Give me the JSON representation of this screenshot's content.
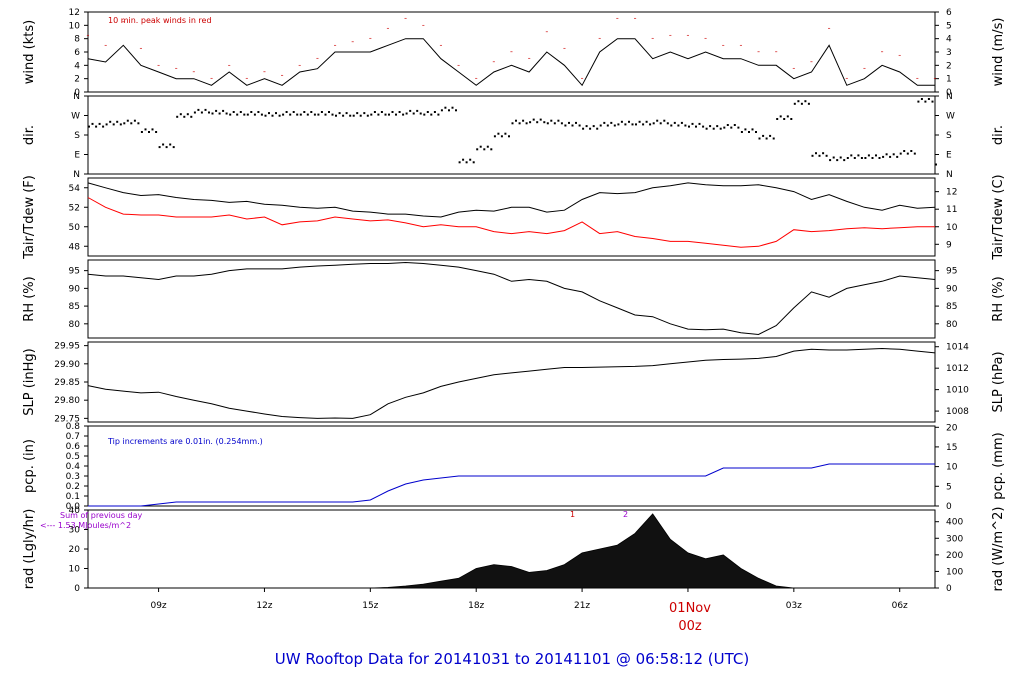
{
  "page_title": "UW Rooftop Data for 20141031  to  20141101 @ 06:58:12  (UTC)",
  "x_axis": {
    "tick_labels": [
      "09z",
      "12z",
      "15z",
      "18z",
      "21z",
      "00z",
      "03z",
      "06z"
    ],
    "date_label": "01Nov",
    "date_sublabel": "00z"
  },
  "panels": {
    "wind": {
      "left_label": "wind (kts)",
      "right_label": "wind (m/s)",
      "left_ticks": [
        "0",
        "2",
        "4",
        "6",
        "8",
        "10",
        "12"
      ],
      "right_ticks": [
        "0",
        "1",
        "2",
        "3",
        "4",
        "5",
        "6"
      ],
      "note": "10 min. peak winds in red"
    },
    "dir": {
      "left_label": "dir.",
      "right_label": "dir.",
      "left_ticks": [
        "N",
        "E",
        "S",
        "W",
        "N"
      ],
      "right_ticks": [
        "N",
        "E",
        "S",
        "W",
        "N"
      ]
    },
    "temp": {
      "left_label": "Tair/Tdew (F)",
      "right_label": "Tair/Tdew (C)",
      "left_ticks": [
        "48",
        "50",
        "52",
        "54"
      ],
      "right_ticks": [
        "9",
        "10",
        "11",
        "12"
      ]
    },
    "rh": {
      "left_label": "RH (%)",
      "right_label": "RH (%)",
      "left_ticks": [
        "80",
        "85",
        "90",
        "95"
      ],
      "right_ticks": [
        "80",
        "85",
        "90",
        "95"
      ]
    },
    "slp": {
      "left_label": "SLP (inHg)",
      "right_label": "SLP (hPa)",
      "left_ticks": [
        "29.75",
        "29.80",
        "29.85",
        "29.90",
        "29.95"
      ],
      "right_ticks": [
        "1008",
        "1010",
        "1012",
        "1014"
      ]
    },
    "pcp": {
      "left_label": "pcp. (in)",
      "right_label": "pcp. (mm)",
      "left_ticks": [
        "0.0",
        "0.1",
        "0.2",
        "0.3",
        "0.4",
        "0.5",
        "0.6",
        "0.7",
        "0.8"
      ],
      "right_ticks": [
        "0",
        "5",
        "10",
        "15",
        "20"
      ],
      "note": "Tip increments are 0.01in. (0.254mm.)"
    },
    "rad": {
      "left_label": "rad (Lgly/hr)",
      "right_label": "rad (W/m^2)",
      "left_ticks": [
        "0",
        "10",
        "20",
        "30",
        "40"
      ],
      "right_ticks": [
        "0",
        "100",
        "200",
        "300",
        "400"
      ],
      "note1": "Sum of previous day",
      "note2": "<--- 1.53 MJoules/m^2",
      "marker1": "1",
      "marker2": "2"
    }
  },
  "colors": {
    "title": "#0000cc",
    "peak": "#cc0000",
    "dewpoint": "#ff0000",
    "precip": "#0000cc",
    "rad_note": "#9900cc",
    "line": "#000000"
  },
  "chart_data": [
    {
      "type": "line",
      "name": "wind",
      "x_hours": [
        7,
        7.5,
        8,
        8.5,
        9,
        9.5,
        10,
        10.5,
        11,
        11.5,
        12,
        12.5,
        13,
        13.5,
        14,
        14.5,
        15,
        15.5,
        16,
        16.5,
        17,
        17.5,
        18,
        18.5,
        19,
        19.5,
        20,
        20.5,
        21,
        21.5,
        22,
        22.5,
        23,
        23.5,
        24,
        24.5,
        25,
        25.5,
        26,
        26.5,
        27,
        27.5,
        28,
        28.5,
        29,
        29.5,
        30,
        30.5,
        31
      ],
      "series": [
        {
          "name": "wind",
          "values": [
            5,
            4.5,
            7,
            4,
            3,
            2,
            2,
            1,
            3,
            1,
            2,
            1,
            3,
            3.5,
            6,
            6,
            6,
            7,
            8,
            8,
            5,
            3,
            1,
            3,
            4,
            3,
            6,
            4,
            1,
            6,
            8,
            8,
            5,
            6,
            5,
            6,
            5,
            5,
            4,
            4,
            2,
            3,
            7,
            1,
            2,
            4,
            3,
            1,
            1
          ]
        },
        {
          "name": "10 min. peak winds",
          "values": [
            8.5,
            7,
            10.5,
            6.5,
            4,
            3.5,
            3,
            2,
            4,
            2,
            3,
            2.5,
            4,
            5,
            7,
            7.5,
            8,
            9.5,
            11,
            10,
            7,
            4,
            2,
            4.5,
            6,
            5,
            9,
            6.5,
            2,
            8,
            11,
            11,
            8,
            8.5,
            8.5,
            8,
            7,
            7,
            6,
            6,
            3.5,
            4.5,
            9.5,
            2,
            3.5,
            6,
            5.5,
            2,
            2
          ]
        }
      ],
      "ylim": [
        0,
        12
      ],
      "y2lim": [
        0,
        6
      ]
    },
    {
      "type": "scatter",
      "name": "dir",
      "x_hours": [
        7,
        7.5,
        8,
        8.5,
        9,
        9.5,
        10,
        10.5,
        11,
        11.5,
        12,
        12.5,
        13,
        13.5,
        14,
        14.5,
        15,
        15.5,
        16,
        16.5,
        17,
        17.5,
        18,
        18.5,
        19,
        19.5,
        20,
        20.5,
        21,
        21.5,
        22,
        22.5,
        23,
        23.5,
        24,
        24.5,
        25,
        25.5,
        26,
        26.5,
        27,
        27.5,
        28,
        28.5,
        29,
        29.5,
        30,
        30.5,
        31
      ],
      "values": [
        225,
        235,
        240,
        200,
        130,
        270,
        290,
        285,
        280,
        280,
        275,
        280,
        280,
        280,
        275,
        275,
        280,
        280,
        285,
        280,
        300,
        60,
        120,
        180,
        240,
        245,
        240,
        230,
        215,
        230,
        235,
        235,
        240,
        230,
        225,
        215,
        220,
        200,
        170,
        260,
        330,
        90,
        70,
        80,
        80,
        85,
        100,
        340,
        50
      ],
      "ylim": [
        0,
        360
      ]
    },
    {
      "type": "line",
      "name": "temp",
      "x_hours": [
        7,
        7.5,
        8,
        8.5,
        9,
        9.5,
        10,
        10.5,
        11,
        11.5,
        12,
        12.5,
        13,
        13.5,
        14,
        14.5,
        15,
        15.5,
        16,
        16.5,
        17,
        17.5,
        18,
        18.5,
        19,
        19.5,
        20,
        20.5,
        21,
        21.5,
        22,
        22.5,
        23,
        23.5,
        24,
        24.5,
        25,
        25.5,
        26,
        26.5,
        27,
        27.5,
        28,
        28.5,
        29,
        29.5,
        30,
        30.5,
        31
      ],
      "series": [
        {
          "name": "Tair",
          "values": [
            54.5,
            54,
            53.5,
            53.2,
            53.3,
            53,
            52.8,
            52.7,
            52.5,
            52.6,
            52.3,
            52.2,
            52,
            51.9,
            52,
            51.6,
            51.5,
            51.3,
            51.3,
            51.1,
            51,
            51.5,
            51.7,
            51.6,
            52,
            52,
            51.5,
            51.7,
            52.8,
            53.5,
            53.4,
            53.5,
            54,
            54.2,
            54.5,
            54.3,
            54.2,
            54.2,
            54.3,
            54,
            53.6,
            52.8,
            53.3,
            52.6,
            52,
            51.7,
            52.2,
            51.9,
            52
          ]
        },
        {
          "name": "Tdew",
          "values": [
            53,
            52,
            51.3,
            51.2,
            51.2,
            51,
            51,
            51,
            51.2,
            50.8,
            51,
            50.2,
            50.5,
            50.6,
            51,
            50.8,
            50.6,
            50.7,
            50.4,
            50,
            50.2,
            50,
            50,
            49.5,
            49.3,
            49.5,
            49.3,
            49.6,
            50.5,
            49.3,
            49.5,
            49,
            48.8,
            48.5,
            48.5,
            48.3,
            48.1,
            47.9,
            48,
            48.5,
            49.7,
            49.5,
            49.6,
            49.8,
            49.9,
            49.8,
            49.9,
            50,
            50
          ]
        }
      ],
      "ylim": [
        47,
        55
      ],
      "y2lim": [
        8.3,
        12.8
      ]
    },
    {
      "type": "line",
      "name": "rh",
      "x_hours": [
        7,
        7.5,
        8,
        8.5,
        9,
        9.5,
        10,
        10.5,
        11,
        11.5,
        12,
        12.5,
        13,
        13.5,
        14,
        14.5,
        15,
        15.5,
        16,
        16.5,
        17,
        17.5,
        18,
        18.5,
        19,
        19.5,
        20,
        20.5,
        21,
        21.5,
        22,
        22.5,
        23,
        23.5,
        24,
        24.5,
        25,
        25.5,
        26,
        26.5,
        27,
        27.5,
        28,
        28.5,
        29,
        29.5,
        30,
        30.5,
        31
      ],
      "values": [
        94,
        93.5,
        93.5,
        93,
        92.5,
        93.5,
        93.5,
        94,
        95,
        95.5,
        95.5,
        95.5,
        96,
        96.3,
        96.5,
        96.8,
        97,
        97,
        97.3,
        97,
        96.5,
        96,
        95,
        94,
        92,
        92.5,
        92,
        90,
        89,
        86.5,
        84.5,
        82.5,
        82,
        80,
        78.5,
        78.3,
        78.5,
        77.5,
        77,
        79.5,
        84.5,
        89,
        87.5,
        90,
        91,
        92,
        93.5,
        93,
        92.5
      ],
      "ylim": [
        76,
        98
      ]
    },
    {
      "type": "line",
      "name": "slp",
      "x_hours": [
        7,
        7.5,
        8,
        8.5,
        9,
        9.5,
        10,
        10.5,
        11,
        11.5,
        12,
        12.5,
        13,
        13.5,
        14,
        14.5,
        15,
        15.5,
        16,
        16.5,
        17,
        17.5,
        18,
        18.5,
        19,
        19.5,
        20,
        20.5,
        21,
        21.5,
        22,
        22.5,
        23,
        23.5,
        24,
        24.5,
        25,
        25.5,
        26,
        26.5,
        27,
        27.5,
        28,
        28.5,
        29,
        29.5,
        30,
        30.5,
        31
      ],
      "values": [
        29.84,
        29.83,
        29.825,
        29.82,
        29.822,
        29.81,
        29.8,
        29.79,
        29.778,
        29.77,
        29.762,
        29.755,
        29.752,
        29.75,
        29.751,
        29.75,
        29.76,
        29.79,
        29.808,
        29.82,
        29.838,
        29.85,
        29.86,
        29.87,
        29.875,
        29.88,
        29.885,
        29.89,
        29.89,
        29.891,
        29.892,
        29.893,
        29.895,
        29.9,
        29.905,
        29.91,
        29.912,
        29.913,
        29.915,
        29.92,
        29.935,
        29.94,
        29.938,
        29.938,
        29.94,
        29.942,
        29.94,
        29.935,
        29.93
      ],
      "ylim": [
        29.74,
        29.96
      ],
      "y2lim": [
        1007.5,
        1014.6
      ]
    },
    {
      "type": "line",
      "name": "pcp",
      "x_hours": [
        7,
        7.5,
        8,
        8.5,
        9,
        9.5,
        10,
        10.5,
        11,
        11.5,
        12,
        12.5,
        13,
        13.5,
        14,
        14.5,
        15,
        15.5,
        16,
        16.5,
        17,
        17.5,
        18,
        18.5,
        19,
        19.5,
        20,
        20.5,
        21,
        21.5,
        22,
        22.5,
        23,
        23.5,
        24,
        24.5,
        25,
        25.5,
        26,
        26.5,
        27,
        27.5,
        28,
        28.5,
        29,
        29.5,
        30,
        30.5,
        31
      ],
      "values": [
        0,
        0,
        0,
        0,
        0.02,
        0.04,
        0.04,
        0.04,
        0.04,
        0.04,
        0.04,
        0.04,
        0.04,
        0.04,
        0.04,
        0.04,
        0.06,
        0.15,
        0.22,
        0.26,
        0.28,
        0.3,
        0.3,
        0.3,
        0.3,
        0.3,
        0.3,
        0.3,
        0.3,
        0.3,
        0.3,
        0.3,
        0.3,
        0.3,
        0.3,
        0.3,
        0.38,
        0.38,
        0.38,
        0.38,
        0.38,
        0.38,
        0.42,
        0.42,
        0.42,
        0.42,
        0.42,
        0.42,
        0.42
      ],
      "ylim": [
        0,
        0.8
      ],
      "y2lim": [
        0,
        20.3
      ]
    },
    {
      "type": "area",
      "name": "rad",
      "x_hours": [
        7,
        7.5,
        8,
        8.5,
        9,
        9.5,
        10,
        10.5,
        11,
        11.5,
        12,
        12.5,
        13,
        13.5,
        14,
        14.5,
        15,
        15.5,
        16,
        16.5,
        17,
        17.5,
        18,
        18.5,
        19,
        19.5,
        20,
        20.5,
        21,
        21.5,
        22,
        22.5,
        23,
        23.5,
        24,
        24.5,
        25,
        25.5,
        26,
        26.5,
        27,
        27.5,
        28,
        28.5,
        29,
        29.5,
        30,
        30.5,
        31
      ],
      "values": [
        0,
        0,
        0,
        0,
        0,
        0,
        0,
        0,
        0,
        0,
        0,
        0,
        0,
        0,
        0,
        0,
        0,
        0.3,
        1,
        2,
        3.5,
        5,
        10,
        12,
        11,
        8,
        9,
        12,
        18,
        20,
        22,
        28,
        38,
        25,
        18,
        15,
        17,
        10,
        5,
        1,
        0,
        0,
        0,
        0,
        0,
        0,
        0,
        0,
        0
      ],
      "ylim": [
        0,
        40
      ],
      "y2lim": [
        0,
        470
      ]
    }
  ]
}
